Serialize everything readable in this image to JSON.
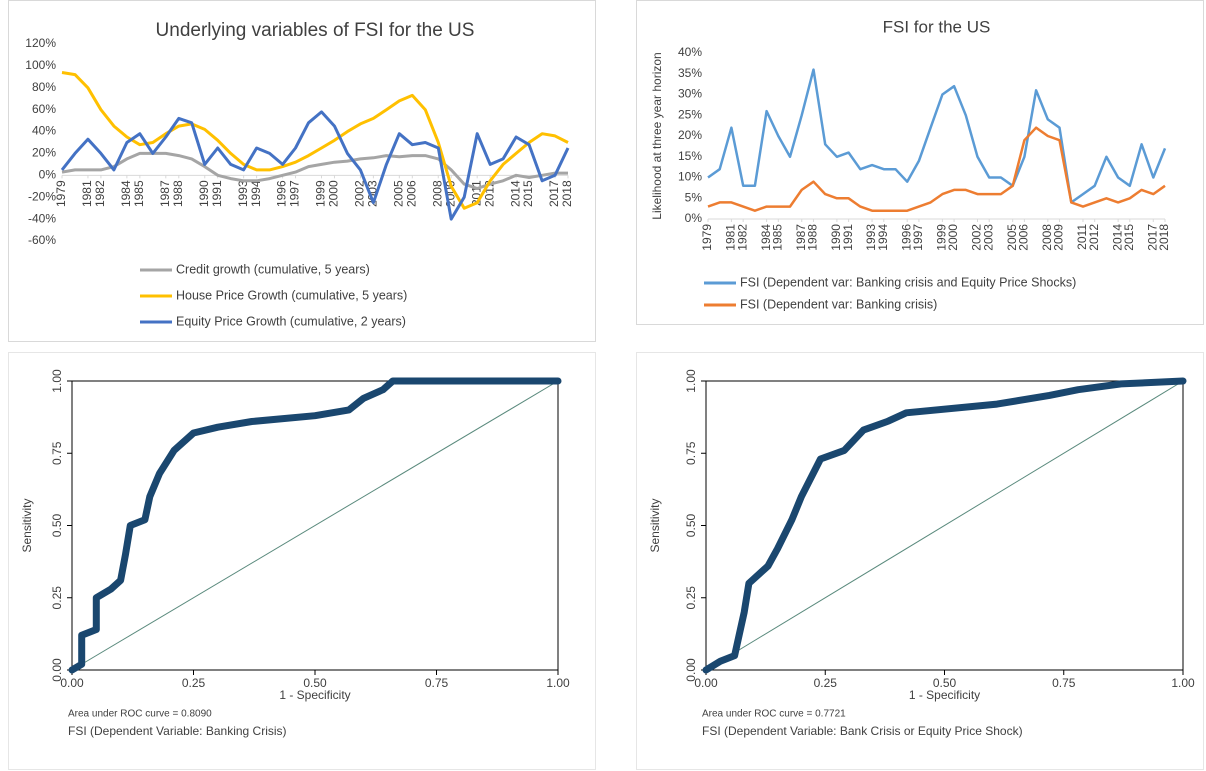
{
  "chart_data": [
    {
      "type": "line",
      "title": "Underlying variables of FSI for the US",
      "x": [
        1979,
        1980,
        1981,
        1982,
        1983,
        1984,
        1985,
        1986,
        1987,
        1988,
        1989,
        1990,
        1991,
        1992,
        1993,
        1994,
        1995,
        1996,
        1997,
        1998,
        1999,
        2000,
        2001,
        2002,
        2003,
        2004,
        2005,
        2006,
        2007,
        2008,
        2009,
        2010,
        2011,
        2012,
        2013,
        2014,
        2015,
        2016,
        2017,
        2018
      ],
      "xlim": [
        1979,
        2018
      ],
      "xticks": [
        1979,
        1981,
        1982,
        1984,
        1985,
        1987,
        1988,
        1990,
        1991,
        1993,
        1994,
        1996,
        1997,
        1999,
        2000,
        2002,
        2003,
        2005,
        2006,
        2008,
        2009,
        2011,
        2012,
        2014,
        2015,
        2017,
        2018
      ],
      "ylim": [
        -60,
        120
      ],
      "yticks": [
        {
          "value": 120,
          "label": "120%"
        },
        {
          "value": 100,
          "label": "100%"
        },
        {
          "value": 80,
          "label": "80%"
        },
        {
          "value": 60,
          "label": "60%"
        },
        {
          "value": 40,
          "label": "40%"
        },
        {
          "value": 20,
          "label": "20%"
        },
        {
          "value": 0,
          "label": "0%"
        },
        {
          "value": -20,
          "label": "-20%"
        },
        {
          "value": -40,
          "label": "-40%"
        },
        {
          "value": -60,
          "label": "-60%"
        }
      ],
      "series": [
        {
          "name": "Credit growth (cumulative, 5 years)",
          "color": "#a5a5a5",
          "values": [
            3,
            5,
            5,
            5,
            8,
            15,
            20,
            20,
            20,
            18,
            15,
            8,
            0,
            -3,
            -5,
            -5,
            -3,
            0,
            3,
            8,
            10,
            12,
            13,
            15,
            16,
            18,
            17,
            18,
            18,
            15,
            5,
            -8,
            -12,
            -8,
            -5,
            0,
            -2,
            0,
            2,
            2
          ]
        },
        {
          "name": "House Price Growth (cumulative, 5 years)",
          "color": "#ffc000",
          "values": [
            94,
            92,
            80,
            60,
            45,
            35,
            28,
            30,
            38,
            45,
            47,
            42,
            32,
            20,
            10,
            5,
            5,
            8,
            12,
            18,
            25,
            32,
            40,
            47,
            52,
            60,
            68,
            73,
            60,
            30,
            -10,
            -30,
            -25,
            -5,
            10,
            20,
            30,
            38,
            36,
            30
          ]
        },
        {
          "name": "Equity Price Growth (cumulative, 2 years)",
          "color": "#4472c4",
          "values": [
            5,
            20,
            33,
            20,
            5,
            30,
            38,
            20,
            35,
            52,
            48,
            10,
            25,
            10,
            5,
            25,
            20,
            10,
            25,
            48,
            58,
            45,
            20,
            5,
            -25,
            10,
            38,
            28,
            30,
            25,
            -40,
            -20,
            38,
            10,
            15,
            35,
            28,
            -5,
            0,
            25
          ]
        }
      ]
    },
    {
      "type": "line",
      "title": "FSI for the US",
      "ylabel": "Likelihood at three year horizon",
      "x": [
        1979,
        1980,
        1981,
        1982,
        1983,
        1984,
        1985,
        1986,
        1987,
        1988,
        1989,
        1990,
        1991,
        1992,
        1993,
        1994,
        1995,
        1996,
        1997,
        1998,
        1999,
        2000,
        2001,
        2002,
        2003,
        2004,
        2005,
        2006,
        2007,
        2008,
        2009,
        2010,
        2011,
        2012,
        2013,
        2014,
        2015,
        2016,
        2017,
        2018
      ],
      "xlim": [
        1979,
        2018
      ],
      "xticks": [
        1979,
        1981,
        1982,
        1984,
        1985,
        1987,
        1988,
        1990,
        1991,
        1993,
        1994,
        1996,
        1997,
        1999,
        2000,
        2002,
        2003,
        2005,
        2006,
        2008,
        2009,
        2011,
        2012,
        2014,
        2015,
        2017,
        2018
      ],
      "ylim": [
        0,
        40
      ],
      "yticks": [
        {
          "value": 0,
          "label": "0%"
        },
        {
          "value": 5,
          "label": "5%"
        },
        {
          "value": 10,
          "label": "10%"
        },
        {
          "value": 15,
          "label": "15%"
        },
        {
          "value": 20,
          "label": "20%"
        },
        {
          "value": 25,
          "label": "25%"
        },
        {
          "value": 30,
          "label": "30%"
        },
        {
          "value": 35,
          "label": "35%"
        },
        {
          "value": 40,
          "label": "40%"
        }
      ],
      "series": [
        {
          "name": "FSI (Dependent var: Banking crisis and Equity Price Shocks)",
          "color": "#5b9bd5",
          "values": [
            10,
            12,
            22,
            8,
            8,
            26,
            20,
            15,
            25,
            36,
            18,
            15,
            16,
            12,
            13,
            12,
            12,
            9,
            14,
            22,
            30,
            32,
            25,
            15,
            10,
            10,
            8,
            15,
            31,
            24,
            22,
            4,
            6,
            8,
            15,
            10,
            8,
            18,
            10,
            17
          ]
        },
        {
          "name": "FSI (Dependent var: Banking crisis)",
          "color": "#ed7d31",
          "values": [
            3,
            4,
            4,
            3,
            2,
            3,
            3,
            3,
            7,
            9,
            6,
            5,
            5,
            3,
            2,
            2,
            2,
            2,
            3,
            4,
            6,
            7,
            7,
            6,
            6,
            6,
            8,
            19,
            22,
            20,
            19,
            4,
            3,
            4,
            5,
            4,
            5,
            7,
            6,
            8
          ]
        }
      ]
    },
    {
      "type": "roc",
      "xlabel": "1 - Specificity",
      "ylabel": "Sensitivity",
      "color": "#1a476f",
      "x": [
        0,
        0.02,
        0.02,
        0.05,
        0.05,
        0.08,
        0.1,
        0.11,
        0.12,
        0.15,
        0.16,
        0.18,
        0.21,
        0.25,
        0.3,
        0.37,
        0.5,
        0.57,
        0.6,
        0.64,
        0.66,
        1.0
      ],
      "values": [
        0,
        0.02,
        0.12,
        0.14,
        0.25,
        0.28,
        0.31,
        0.4,
        0.5,
        0.52,
        0.6,
        0.68,
        0.76,
        0.82,
        0.84,
        0.86,
        0.88,
        0.9,
        0.94,
        0.97,
        1.0,
        1.0
      ],
      "xlim": [
        0,
        1
      ],
      "ylim": [
        0,
        1
      ],
      "xticks": [
        {
          "value": 0,
          "label": "0.00"
        },
        {
          "value": 0.25,
          "label": "0.25"
        },
        {
          "value": 0.5,
          "label": "0.50"
        },
        {
          "value": 0.75,
          "label": "0.75"
        },
        {
          "value": 1,
          "label": "1.00"
        }
      ],
      "yticks": [
        {
          "value": 0,
          "label": "0.00"
        },
        {
          "value": 0.25,
          "label": "0.25"
        },
        {
          "value": 0.5,
          "label": "0.50"
        },
        {
          "value": 0.75,
          "label": "0.75"
        },
        {
          "value": 1,
          "label": "1.00"
        }
      ],
      "annotations": [
        "Area under ROC curve = 0.8090",
        "FSI (Dependent Variable: Banking Crisis)"
      ]
    },
    {
      "type": "roc",
      "xlabel": "1 - Specificity",
      "ylabel": "Sensitivity",
      "color": "#1a476f",
      "x": [
        0,
        0.03,
        0.06,
        0.08,
        0.09,
        0.13,
        0.15,
        0.18,
        0.2,
        0.24,
        0.29,
        0.33,
        0.38,
        0.42,
        0.61,
        0.72,
        0.78,
        0.87,
        1.0
      ],
      "values": [
        0,
        0.03,
        0.05,
        0.2,
        0.3,
        0.36,
        0.42,
        0.52,
        0.6,
        0.73,
        0.76,
        0.83,
        0.86,
        0.89,
        0.92,
        0.95,
        0.97,
        0.99,
        1.0
      ],
      "xlim": [
        0,
        1
      ],
      "ylim": [
        0,
        1
      ],
      "xticks": [
        {
          "value": 0,
          "label": "0.00"
        },
        {
          "value": 0.25,
          "label": "0.25"
        },
        {
          "value": 0.5,
          "label": "0.50"
        },
        {
          "value": 0.75,
          "label": "0.75"
        },
        {
          "value": 1,
          "label": "1.00"
        }
      ],
      "yticks": [
        {
          "value": 0,
          "label": "0.00"
        },
        {
          "value": 0.25,
          "label": "0.25"
        },
        {
          "value": 0.5,
          "label": "0.50"
        },
        {
          "value": 0.75,
          "label": "0.75"
        },
        {
          "value": 1,
          "label": "1.00"
        }
      ],
      "annotations": [
        "Area under ROC curve = 0.7721",
        "FSI (Dependent Variable: Bank Crisis  or Equity Price Shock)"
      ]
    }
  ]
}
